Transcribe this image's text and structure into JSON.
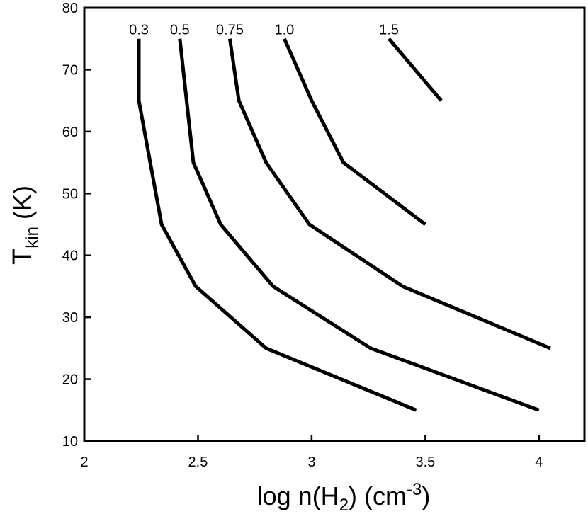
{
  "chart_data": {
    "type": "line",
    "xlabel_parts": {
      "main": "log n(H",
      "sub": "2",
      "mid": ") (cm",
      "sup": "-3",
      "end": ")"
    },
    "ylabel_parts": {
      "main": "T",
      "sub": "kin",
      "end": " (K)"
    },
    "xlim": [
      2,
      4.2
    ],
    "ylim": [
      10,
      80
    ],
    "xticks": [
      2,
      2.5,
      3,
      3.5,
      4
    ],
    "xtick_labels": [
      "2",
      "2.5",
      "3",
      "3.5",
      "4"
    ],
    "yticks": [
      10,
      20,
      30,
      40,
      50,
      60,
      70,
      80
    ],
    "ytick_labels": [
      "10",
      "20",
      "30",
      "40",
      "50",
      "60",
      "70",
      "80"
    ],
    "grid": false,
    "series": [
      {
        "name": "0.3",
        "x": [
          2.24,
          2.24,
          2.34,
          2.49,
          2.8,
          3.46
        ],
        "y": [
          75,
          65,
          45,
          35,
          25,
          15
        ]
      },
      {
        "name": "0.5",
        "x": [
          2.42,
          2.48,
          2.6,
          2.83,
          3.26,
          4.0
        ],
        "y": [
          75,
          55,
          45,
          35,
          25,
          15
        ]
      },
      {
        "name": "0.75",
        "x": [
          2.64,
          2.68,
          2.8,
          2.99,
          3.4,
          4.05
        ],
        "y": [
          75,
          65,
          55,
          45,
          35,
          25
        ]
      },
      {
        "name": "1.0",
        "x": [
          2.88,
          3.0,
          3.14,
          3.5
        ],
        "y": [
          75,
          65,
          55,
          45
        ]
      },
      {
        "name": "1.5",
        "x": [
          3.34,
          3.57
        ],
        "y": [
          75,
          65
        ]
      }
    ]
  }
}
